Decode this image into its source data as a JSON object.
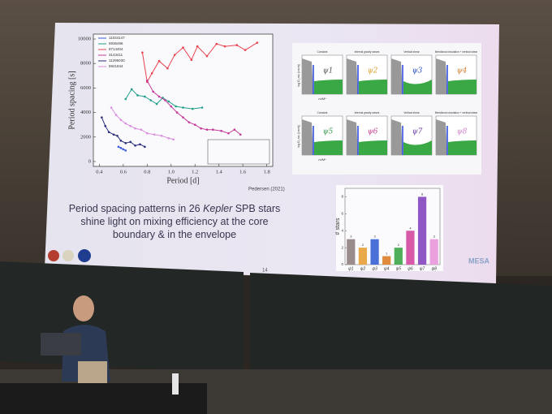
{
  "slide": {
    "caption_lines": [
      [
        "Period spacing patterns in 26 ",
        "Kepler",
        " SPB stars"
      ],
      [
        "shine light on mixing efficiency at the core"
      ],
      [
        "boundary & in the envelope"
      ]
    ],
    "citation": "Pedersen (2021)",
    "page_number": "14",
    "logo_text": "MESA"
  },
  "period_plot": {
    "x_label": "Period [d]",
    "y_label": "Period spacing [s]",
    "xlim": [
      0.35,
      1.85
    ],
    "ylim": [
      -400,
      10400
    ],
    "xticks": [
      0.4,
      0.6,
      0.8,
      {
        "value": 1,
        "label": "1.0"
      },
      1.2,
      1.4,
      1.6,
      1.8
    ],
    "yticks": [
      0,
      2000,
      4000,
      6000,
      8000,
      10000
    ],
    "series": [
      {
        "name": "11034147",
        "color": "#3b5bdb",
        "x": [
          0.56,
          0.58,
          0.6,
          0.62
        ],
        "values": [
          1200,
          1100,
          1000,
          900
        ]
      },
      {
        "name": "6936496",
        "color": "#1f9e8a",
        "x": [
          0.62,
          0.67,
          0.72,
          0.78,
          0.83,
          0.88,
          0.93,
          0.98,
          1.04,
          1.1,
          1.18,
          1.26
        ],
        "values": [
          5100,
          5900,
          5400,
          5300,
          5000,
          4700,
          5200,
          4900,
          4500,
          4400,
          4300,
          4400
        ]
      },
      {
        "name": "8714404",
        "color": "#e8434f",
        "x": [
          0.76,
          0.8,
          0.84,
          0.9,
          0.97,
          1.03,
          1.1,
          1.17,
          1.22,
          1.3,
          1.38,
          1.45,
          1.55,
          1.62,
          1.72
        ],
        "values": [
          8900,
          6500,
          7200,
          8200,
          7600,
          8700,
          9300,
          8300,
          9400,
          8600,
          9600,
          9400,
          9500,
          9100,
          9700
        ]
      },
      {
        "name": "3143411",
        "color": "#c53a9a",
        "x": [
          0.8,
          0.85,
          0.9,
          0.95,
          1.0,
          1.05,
          1.1,
          1.15,
          1.2,
          1.25,
          1.3,
          1.35,
          1.42,
          1.48,
          1.53,
          1.58
        ],
        "values": [
          6600,
          5700,
          5300,
          5000,
          4500,
          4000,
          3600,
          3200,
          3000,
          2700,
          2600,
          2600,
          2500,
          2300,
          2600,
          2200
        ]
      },
      {
        "name": "11295030",
        "color": "#2b2f7a",
        "x": [
          0.42,
          0.45,
          0.48,
          0.52,
          0.55,
          0.58,
          0.62,
          0.66,
          0.7,
          0.74,
          0.78
        ],
        "values": [
          3600,
          2900,
          2400,
          2200,
          2100,
          1700,
          1500,
          1600,
          1300,
          1400,
          1200
        ]
      },
      {
        "name": "5941844",
        "color": "#d98ee0",
        "x": [
          0.5,
          0.54,
          0.58,
          0.62,
          0.66,
          0.7,
          0.75,
          0.8,
          0.86,
          0.92,
          0.98,
          1.02
        ],
        "values": [
          4400,
          3800,
          3400,
          3100,
          2900,
          2700,
          2600,
          2300,
          2200,
          2100,
          1900,
          1800
        ]
      }
    ]
  },
  "mixing_panels": {
    "y_label": "log D_mix [cm²/s]",
    "x_label": "m/M*",
    "panels": [
      {
        "title": "Constant",
        "label": "ψ1"
      },
      {
        "title": "Internal gravity waves",
        "label": "ψ2"
      },
      {
        "title": "Vertical shear",
        "label": "ψ3"
      },
      {
        "title": "Meridional circulation + vertical shear",
        "label": "ψ4"
      },
      {
        "title": "Constant",
        "label": "ψ5"
      },
      {
        "title": "Internal gravity waves",
        "label": "ψ6"
      },
      {
        "title": "Vertical shear",
        "label": "ψ7"
      },
      {
        "title": "Meridional circulation + vertical shear",
        "label": "ψ8"
      }
    ]
  },
  "bar_chart": {
    "y_label": "# stars",
    "categories": [
      "ψ1",
      "ψ2",
      "ψ3",
      "ψ4",
      "ψ5",
      "ψ6",
      "ψ7",
      "ψ8"
    ],
    "values": [
      3,
      2,
      3,
      1,
      2,
      4,
      8,
      3
    ],
    "colors": [
      "#9a8c8c",
      "#e9a94b",
      "#4a6fd6",
      "#e08a3c",
      "#4fae5a",
      "#d65aa8",
      "#8e57c4",
      "#eaa0dc"
    ],
    "ylim": [
      0,
      9
    ],
    "yticks": [
      0,
      2,
      4,
      6,
      8
    ]
  }
}
